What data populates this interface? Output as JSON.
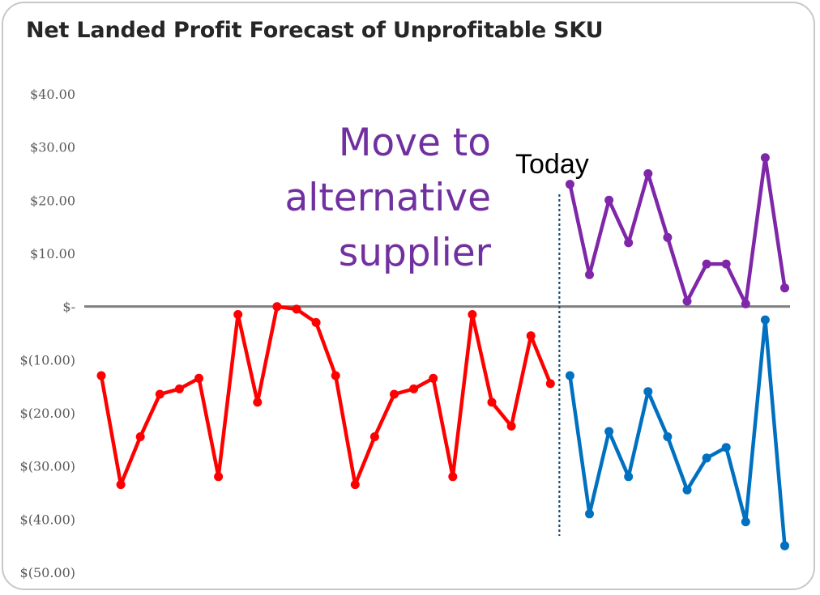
{
  "chart_data": {
    "type": "line",
    "title": "Net Landed Profit Forecast of Unprofitable SKU",
    "ylim": [
      -50,
      40
    ],
    "yticks": [
      {
        "value": 40,
        "label": "$40.00"
      },
      {
        "value": 30,
        "label": "$30.00"
      },
      {
        "value": 20,
        "label": "$20.00"
      },
      {
        "value": 10,
        "label": "$10.00"
      },
      {
        "value": 0,
        "label": "$-"
      },
      {
        "value": -10,
        "label": "$(10.00)"
      },
      {
        "value": -20,
        "label": "$(20.00)"
      },
      {
        "value": -30,
        "label": "$(30.00)"
      },
      {
        "value": -40,
        "label": "$(40.00)"
      },
      {
        "value": -50,
        "label": "$(50.00)"
      }
    ],
    "grid": false,
    "legend": "none",
    "today_index": 24,
    "series": [
      {
        "color": "#ff0000",
        "x_start": 1,
        "values": [
          -13,
          -33.5,
          -24.5,
          -16.5,
          -15.5,
          -13.5,
          -32,
          -1.5,
          -18,
          0,
          -0.5,
          -3,
          -13,
          -33.5,
          -24.5,
          -16.5,
          -15.5,
          -13.5,
          -32,
          -1.5,
          -18,
          -22.5,
          -5.5,
          -14.5
        ]
      },
      {
        "color": "#7f27a8",
        "x_start": 25,
        "values": [
          23,
          6,
          20,
          12,
          25,
          13,
          1,
          8,
          8,
          0.5,
          28,
          3.5
        ]
      },
      {
        "color": "#0070c0",
        "x_start": 25,
        "values": [
          -13,
          -39,
          -23.5,
          -32,
          -16,
          -24.5,
          -34.5,
          -28.5,
          -26.5,
          -40.5,
          -2.5,
          -45
        ]
      }
    ],
    "annotations": {
      "move_line1": "Move to",
      "move_line2": "alternative",
      "move_line3": "supplier",
      "today": "Today"
    }
  }
}
